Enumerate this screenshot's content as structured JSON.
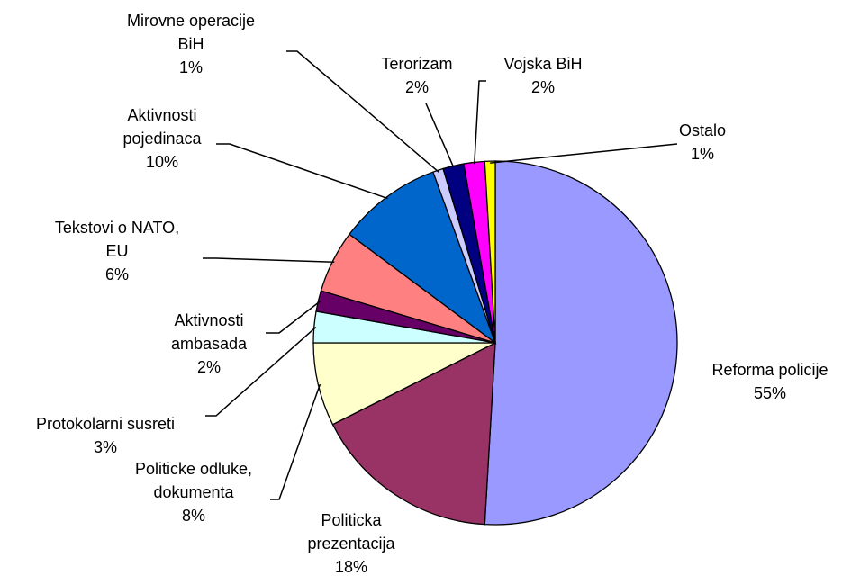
{
  "chart_data": {
    "type": "pie",
    "categories": [
      "Reforma policije",
      "Politicka prezentacija",
      "Politicke odluke, dokumenta",
      "Protokolarni susreti",
      "Aktivnosti ambasada",
      "Tekstovi o NATO, EU",
      "Aktivnosti pojedinaca",
      "Mirovne operacije BiH",
      "Terorizam",
      "Vojska BiH",
      "Ostalo"
    ],
    "values": [
      55,
      18,
      8,
      3,
      2,
      6,
      10,
      1,
      2,
      2,
      1
    ],
    "value_labels": [
      "55%",
      "18%",
      "8%",
      "3%",
      "2%",
      "6%",
      "10%",
      "1%",
      "2%",
      "2%",
      "1%"
    ],
    "colors": [
      "#9999ff",
      "#993366",
      "#ffffcc",
      "#ccffff",
      "#660066",
      "#ff8080",
      "#0066cc",
      "#ccccff",
      "#000080",
      "#ff00ff",
      "#ffff00"
    ]
  }
}
